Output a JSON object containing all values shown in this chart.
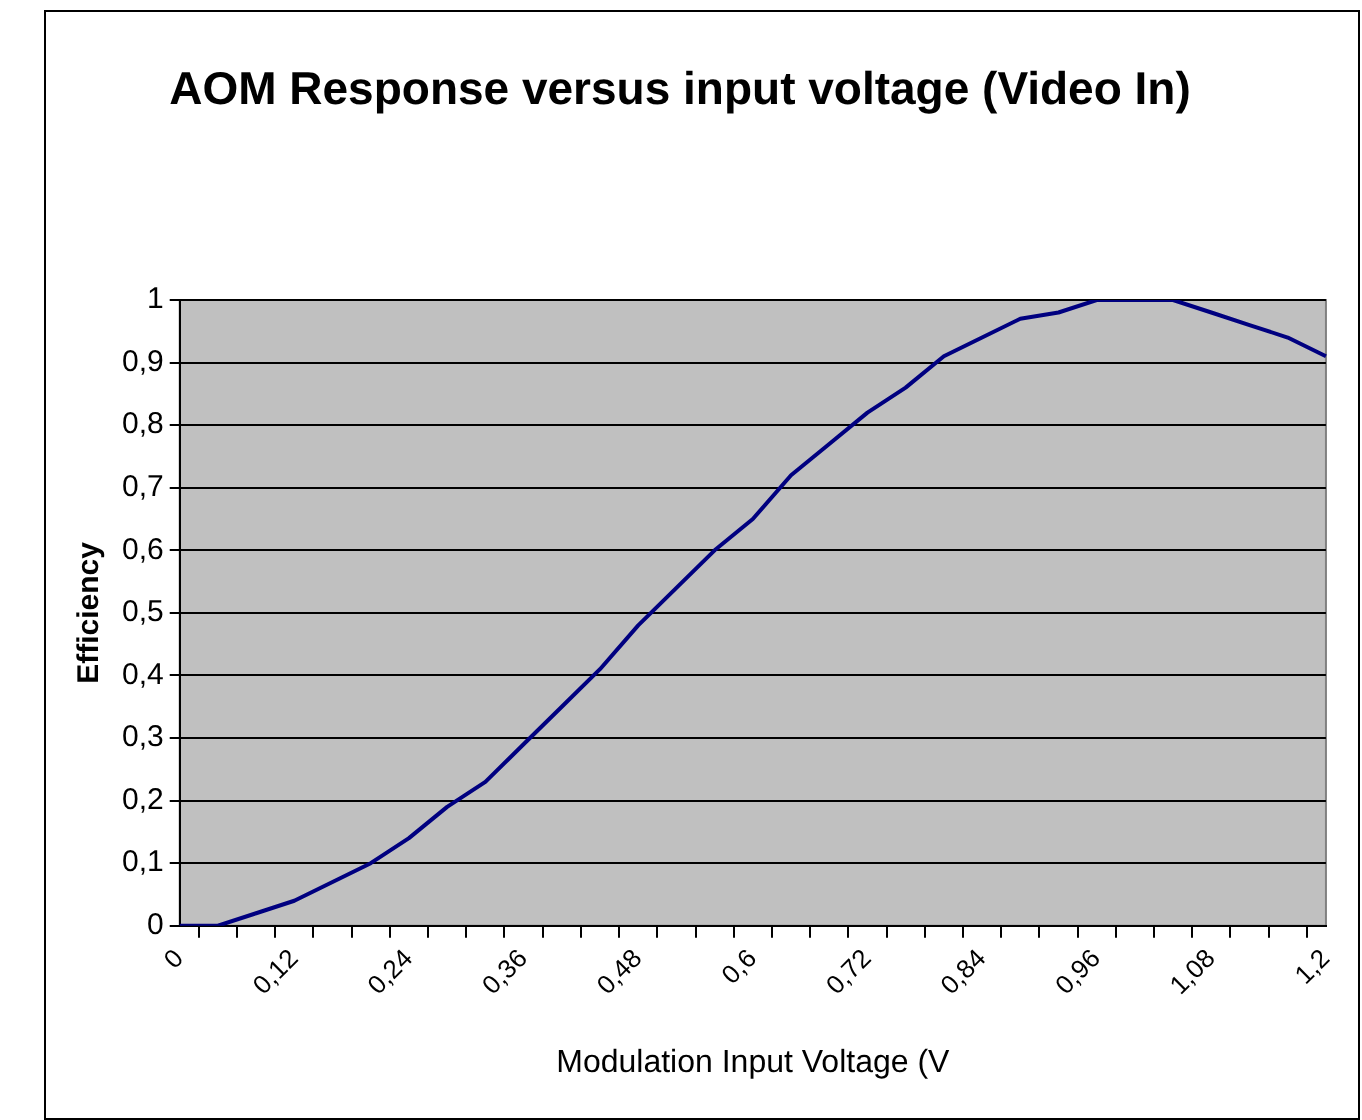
{
  "chart_data": {
    "type": "line",
    "title": "AOM Response versus input voltage (Video In)",
    "xlabel": "Modulation Input Voltage (V",
    "ylabel": "Efficiency",
    "categories": [
      "0",
      null,
      null,
      "0,12",
      null,
      null,
      "0,24",
      null,
      null,
      "0,36",
      null,
      null,
      "0,48",
      null,
      null,
      "0,6",
      null,
      null,
      "0,72",
      null,
      null,
      "0,84",
      null,
      null,
      "0,96",
      null,
      null,
      "1,08",
      null,
      null,
      "1,2"
    ],
    "series": [
      {
        "color": "#000080",
        "values": [
          0,
          0,
          0.02,
          0.04,
          0.07,
          0.1,
          0.14,
          0.19,
          0.23,
          0.29,
          0.35,
          0.41,
          0.48,
          0.54,
          0.6,
          0.65,
          0.72,
          0.77,
          0.82,
          0.86,
          0.91,
          0.94,
          0.97,
          0.98,
          1,
          1,
          1,
          0.98,
          0.96,
          0.94,
          0.91
        ]
      }
    ],
    "ylim": [
      0,
      1
    ],
    "yticks": [
      0,
      {
        "value": 0.1,
        "label": "0,1"
      },
      {
        "value": 0.2,
        "label": "0,2"
      },
      {
        "value": 0.3,
        "label": "0,3"
      },
      {
        "value": 0.4,
        "label": "0,4"
      },
      {
        "value": 0.5,
        "label": "0,5"
      },
      {
        "value": 0.6,
        "label": "0,6"
      },
      {
        "value": 0.7,
        "label": "0,7"
      },
      {
        "value": 0.8,
        "label": "0,8"
      },
      {
        "value": 0.9,
        "label": "0,9"
      },
      1
    ],
    "grid": "y",
    "legend": false,
    "marker": "none",
    "line_style": "solid"
  }
}
